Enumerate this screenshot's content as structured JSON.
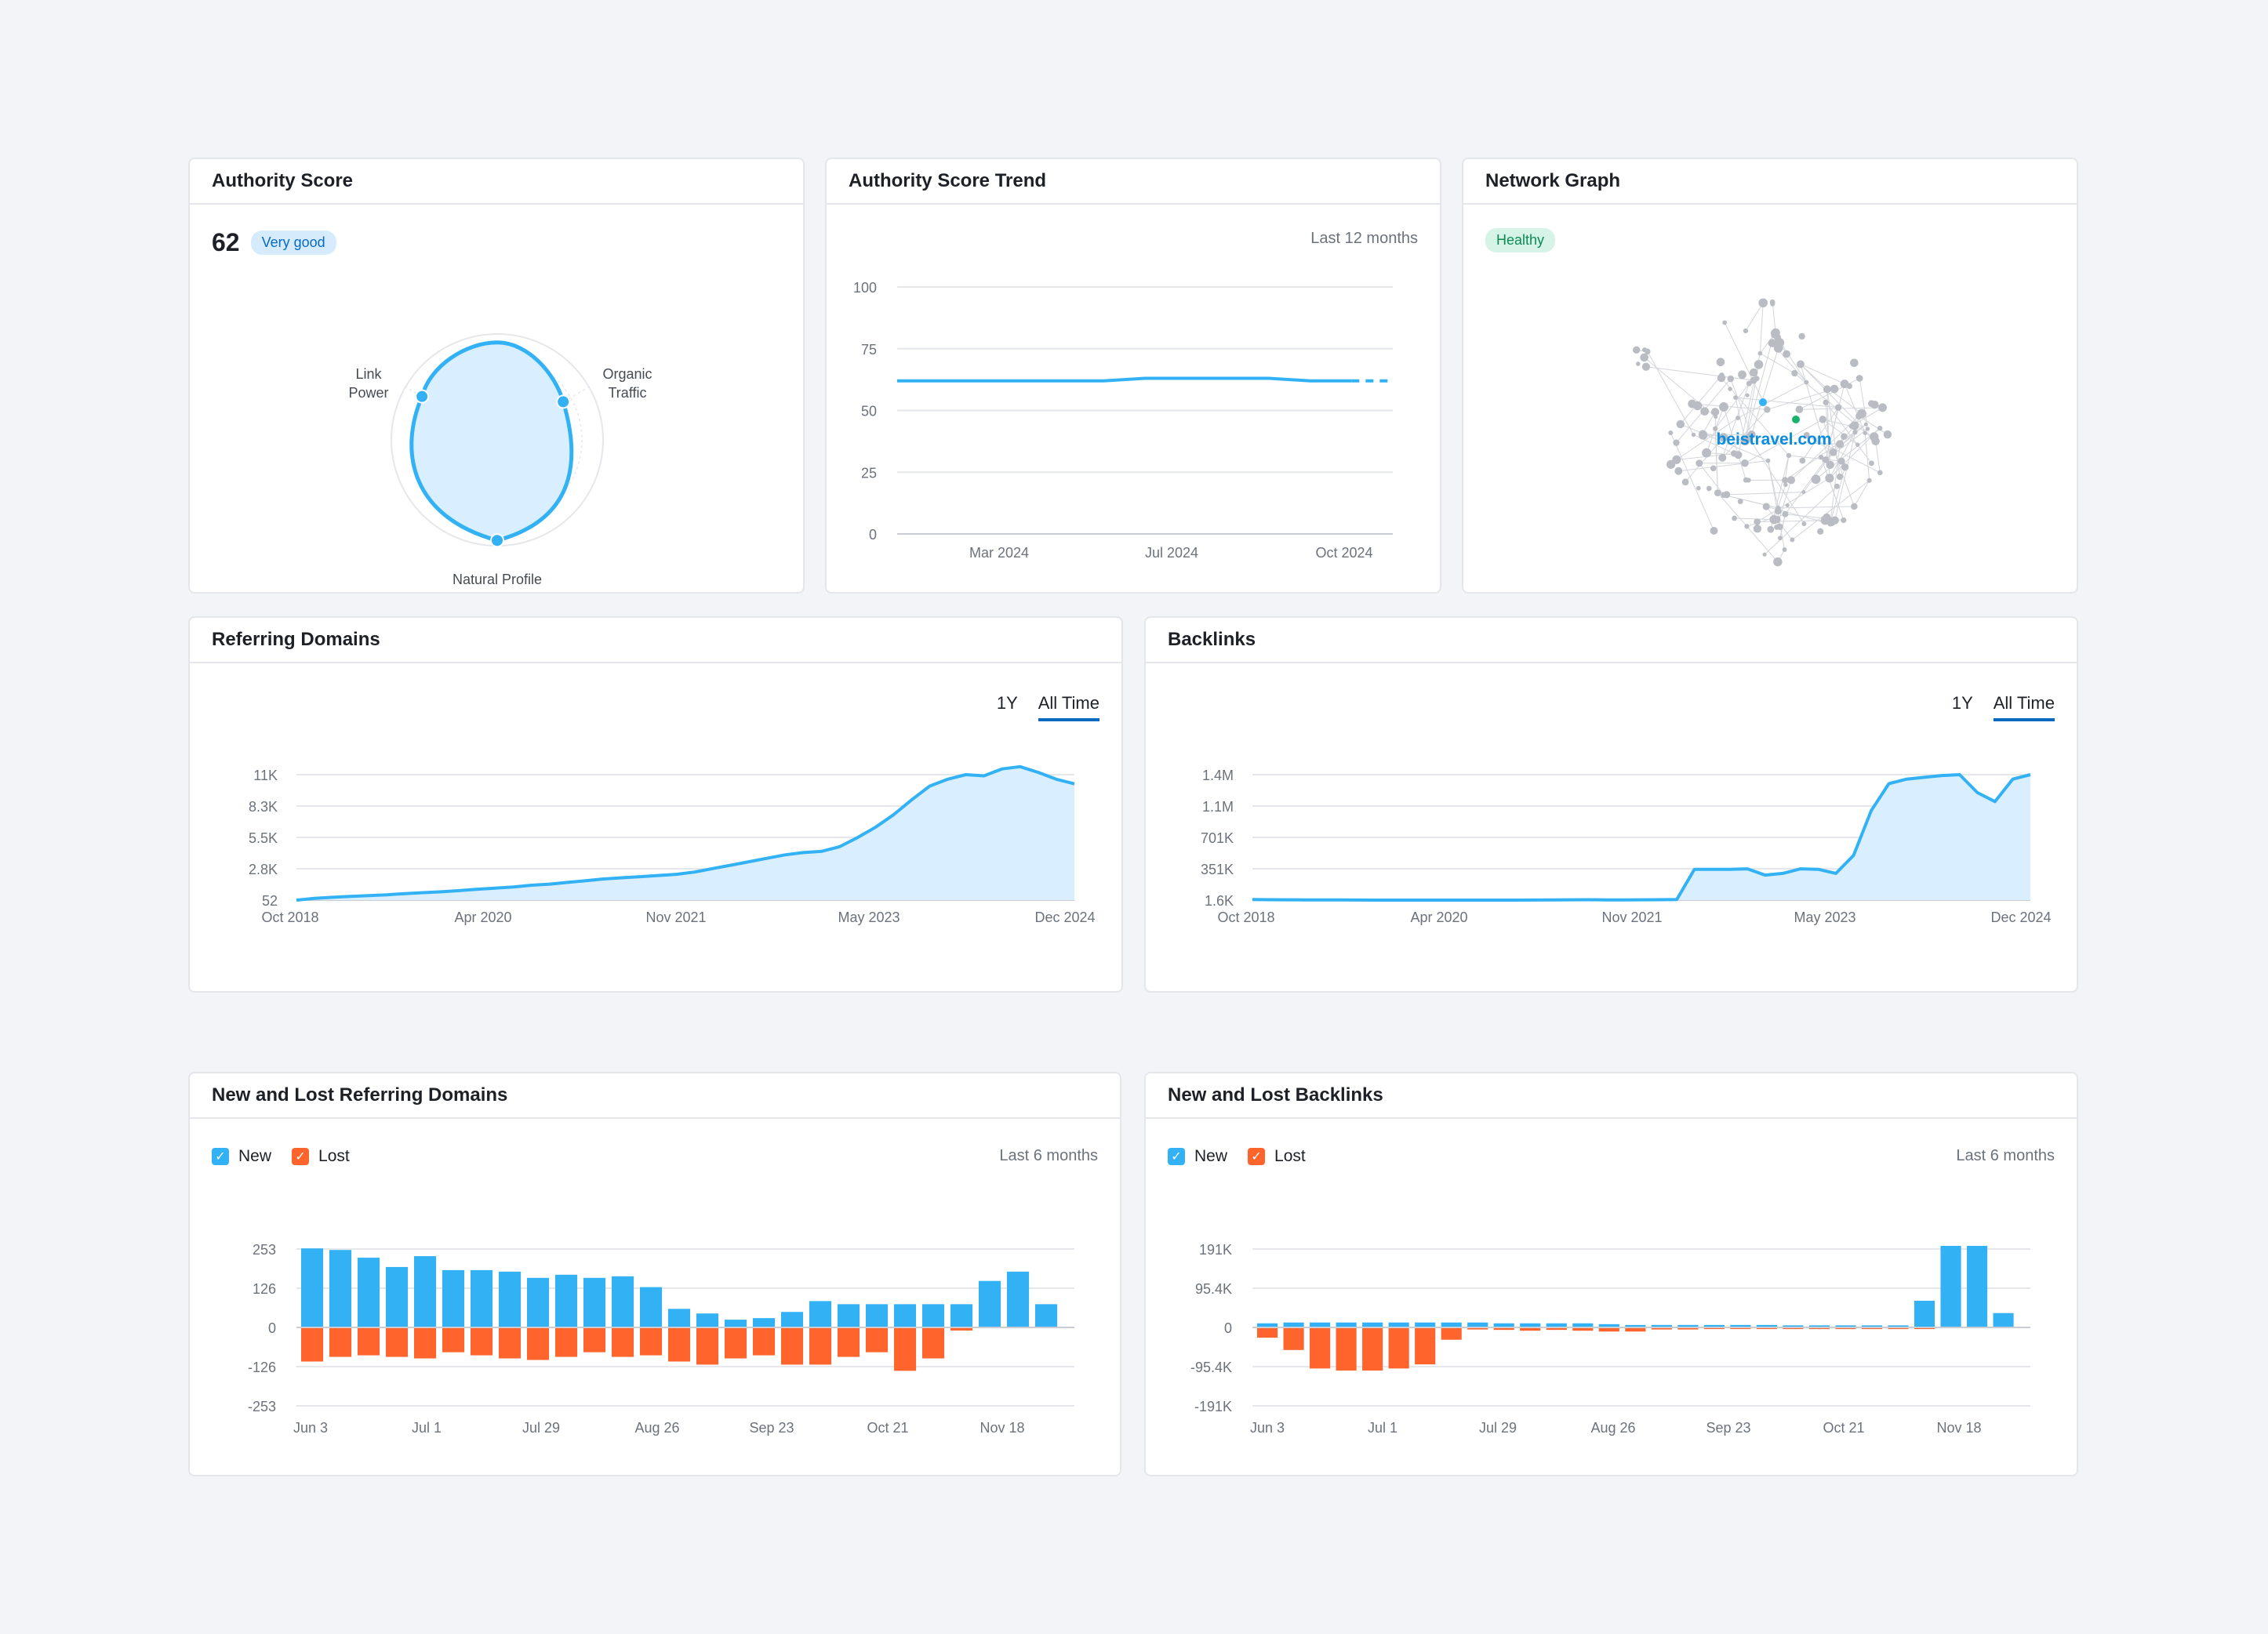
{
  "colors": {
    "blue": "#33b1f5",
    "orange": "#ff642d",
    "grid": "#e5e7eb",
    "text": "#1d2127",
    "muted": "#6c727c"
  },
  "authority": {
    "title": "Authority Score",
    "score": "62",
    "badge": "Very good",
    "axes": {
      "link": "Link\nPower",
      "organic": "Organic\nTraffic",
      "natural": "Natural Profile"
    },
    "radar_values": {
      "link_power": 0.82,
      "organic_traffic": 0.72,
      "natural_profile": 0.95
    }
  },
  "trend": {
    "title": "Authority Score Trend",
    "period": "Last 12 months",
    "chart_data": {
      "type": "line",
      "ylim": [
        0,
        100
      ],
      "yticks": [
        "100",
        "75",
        "50",
        "25",
        "0"
      ],
      "xticks": [
        "Mar 2024",
        "Jul 2024",
        "Oct 2024"
      ],
      "x": [
        "Dec 2023",
        "Jan 2024",
        "Feb 2024",
        "Mar 2024",
        "Apr 2024",
        "May 2024",
        "Jun 2024",
        "Jul 2024",
        "Aug 2024",
        "Sep 2024",
        "Oct 2024",
        "Nov 2024",
        "Dec 2024"
      ],
      "values": [
        62,
        62,
        62,
        62,
        62,
        62,
        63,
        63,
        63,
        63,
        62,
        62,
        62
      ],
      "dashed_from_index": 11
    }
  },
  "network": {
    "title": "Network Graph",
    "badge": "Healthy",
    "domain": "beistravel.com"
  },
  "referring": {
    "title": "Referring Domains",
    "tabs": [
      "1Y",
      "All Time"
    ],
    "active_tab": "All Time",
    "chart_data": {
      "type": "area",
      "yticks": [
        "11K",
        "8.3K",
        "5.5K",
        "2.8K",
        "52"
      ],
      "ylim": [
        52,
        11000
      ],
      "xticks": [
        "Oct 2018",
        "Apr 2020",
        "Nov 2021",
        "May 2023",
        "Dec 2024"
      ],
      "values": [
        52,
        200,
        300,
        380,
        450,
        520,
        620,
        700,
        780,
        880,
        1000,
        1100,
        1200,
        1350,
        1450,
        1600,
        1750,
        1900,
        2000,
        2100,
        2200,
        2300,
        2500,
        2800,
        3100,
        3400,
        3700,
        4000,
        4200,
        4300,
        4700,
        5500,
        6400,
        7500,
        8800,
        10000,
        10600,
        11000,
        10900,
        11500,
        11700,
        11200,
        10600,
        10200
      ]
    }
  },
  "backlinks": {
    "title": "Backlinks",
    "tabs": [
      "1Y",
      "All Time"
    ],
    "active_tab": "All Time",
    "chart_data": {
      "type": "area",
      "yticks": [
        "1.4M",
        "1.1M",
        "701K",
        "351K",
        "1.6K"
      ],
      "ylim": [
        1600,
        1400000
      ],
      "xticks": [
        "Oct 2018",
        "Apr 2020",
        "Nov 2021",
        "May 2023",
        "Dec 2024"
      ],
      "values": [
        8000,
        6000,
        5000,
        4000,
        3500,
        3000,
        2500,
        2000,
        2000,
        1800,
        1800,
        1600,
        1700,
        1800,
        2000,
        2000,
        2200,
        3000,
        5000,
        6000,
        4000,
        4000,
        5000,
        6000,
        8000,
        345000,
        345000,
        345000,
        350000,
        280000,
        300000,
        350000,
        345000,
        300000,
        500000,
        1000000,
        1300000,
        1350000,
        1370000,
        1390000,
        1400000,
        1200000,
        1100000,
        1350000,
        1400000
      ]
    }
  },
  "newlost_rd": {
    "title": "New and Lost Referring Domains",
    "legend": {
      "new": "New",
      "lost": "Lost"
    },
    "period": "Last 6 months",
    "chart_data": {
      "type": "bar",
      "yticks": [
        "253",
        "126",
        "0",
        "-126",
        "-253"
      ],
      "ylim": [
        -253,
        253
      ],
      "xticks": [
        "Jun 3",
        "Jul 1",
        "Jul 29",
        "Aug 26",
        "Sep 23",
        "Oct 21",
        "Nov 18"
      ],
      "new": [
        255,
        250,
        225,
        195,
        230,
        185,
        185,
        180,
        160,
        170,
        160,
        165,
        130,
        60,
        45,
        25,
        30,
        50,
        85,
        75,
        75,
        75,
        75,
        75,
        150,
        180,
        75
      ],
      "lost": [
        -110,
        -95,
        -90,
        -95,
        -100,
        -80,
        -90,
        -100,
        -105,
        -95,
        -80,
        -95,
        -90,
        -110,
        -120,
        -100,
        -90,
        -120,
        -120,
        -95,
        -80,
        -140,
        -100,
        -10,
        0,
        0,
        0
      ]
    }
  },
  "newlost_bl": {
    "title": "New and Lost Backlinks",
    "legend": {
      "new": "New",
      "lost": "Lost"
    },
    "period": "Last 6 months",
    "chart_data": {
      "type": "bar",
      "yticks": [
        "191K",
        "95.4K",
        "0",
        "-95.4K",
        "-191K"
      ],
      "ylim": [
        -191000,
        191000
      ],
      "xticks": [
        "Jun 3",
        "Jul 1",
        "Jul 29",
        "Aug 26",
        "Sep 23",
        "Oct 21",
        "Nov 18"
      ],
      "new": [
        10000,
        12000,
        12000,
        12000,
        12000,
        12000,
        12000,
        12000,
        12000,
        10000,
        10000,
        10000,
        10000,
        8000,
        6000,
        6000,
        6000,
        6000,
        6000,
        6000,
        5000,
        5000,
        5000,
        5000,
        5000,
        65000,
        215000,
        200000,
        35000
      ],
      "lost": [
        -25000,
        -55000,
        -100000,
        -105000,
        -105000,
        -100000,
        -90000,
        -30000,
        -5000,
        -6000,
        -8000,
        -6000,
        -8000,
        -10000,
        -10000,
        -5000,
        -5000,
        -4000,
        -4000,
        -4000,
        -4000,
        -4000,
        -4000,
        -4000,
        -4000,
        -4000,
        0,
        0,
        0
      ]
    }
  }
}
